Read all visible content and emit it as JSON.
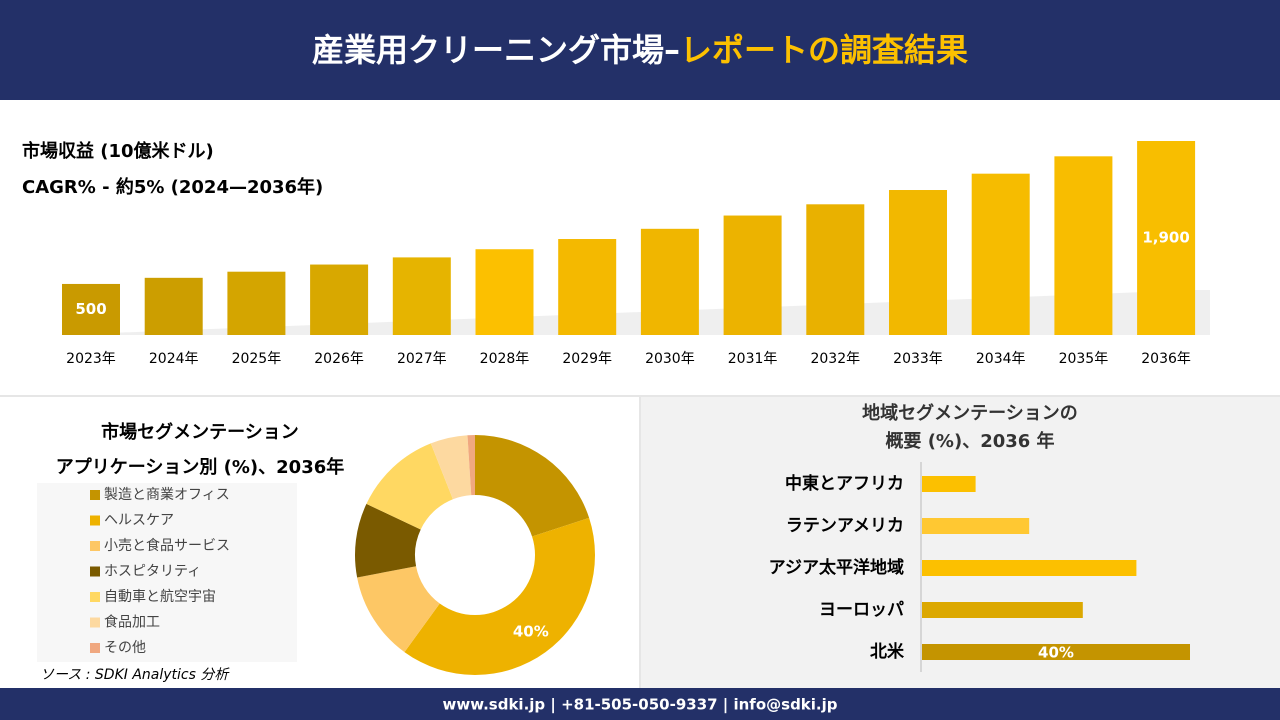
{
  "header": {
    "title": "産業用クリーニング市場–",
    "title_highlight": "レポートの調査結果"
  },
  "chart_data": [
    {
      "type": "bar",
      "title": "市場収益 (10億米ドル)",
      "subtitle": "CAGR% - 約5% (2024—2036年)",
      "categories": [
        "2023年",
        "2024年",
        "2025年",
        "2026年",
        "2027年",
        "2028年",
        "2029年",
        "2030年",
        "2031年",
        "2032年",
        "2033年",
        "2034年",
        "2035年",
        "2036年"
      ],
      "values": [
        500,
        560,
        620,
        690,
        760,
        840,
        940,
        1040,
        1170,
        1280,
        1420,
        1580,
        1750,
        1900
      ],
      "value_labels": [
        "500",
        null,
        null,
        null,
        null,
        null,
        null,
        null,
        null,
        null,
        null,
        null,
        null,
        "1,900"
      ],
      "colors": [
        "#c99a00",
        "#cc9e00",
        "#d4a500",
        "#d8a800",
        "#e6b400",
        "#fcc000",
        "#f4b900",
        "#f0b600",
        "#ecb300",
        "#e9b100",
        "#f2b800",
        "#f6bc00",
        "#f8bd00",
        "#f8be00"
      ]
    },
    {
      "type": "pie",
      "title": "市場セグメンテーション",
      "subtitle": "アプリケーション別 (%)、2036年",
      "categories": [
        "製造と商業オフィス",
        "ヘルスケア",
        "小売と食品サービス",
        "ホスピタリティ",
        "自動車と航空宇宙",
        "食品加工",
        "その他"
      ],
      "values": [
        20,
        40,
        12,
        10,
        12,
        5,
        1
      ],
      "value_labels": [
        null,
        "40%",
        null,
        null,
        null,
        null,
        null
      ],
      "colors": [
        "#c49400",
        "#eeb200",
        "#fdc765",
        "#7a5a00",
        "#ffd862",
        "#fdd9a0",
        "#f0a880"
      ]
    },
    {
      "type": "barh",
      "title_lines": [
        "地域セグメンテーションの",
        "概要 (%)、2036 年"
      ],
      "categories": [
        "中東とアフリカ",
        "ラテンアメリカ",
        "アジア太平洋地域",
        "ヨーロッパ",
        "北米"
      ],
      "values": [
        8,
        16,
        32,
        24,
        40
      ],
      "value_labels": [
        null,
        null,
        null,
        null,
        "40%"
      ],
      "colors": [
        "#fcc000",
        "#ffc832",
        "#fcc000",
        "#dca800",
        "#c49400"
      ]
    }
  ],
  "source": "ソース : SDKI Analytics 分析",
  "footer": "www.sdki.jp | +81-505-050-9337 | info@sdki.jp"
}
